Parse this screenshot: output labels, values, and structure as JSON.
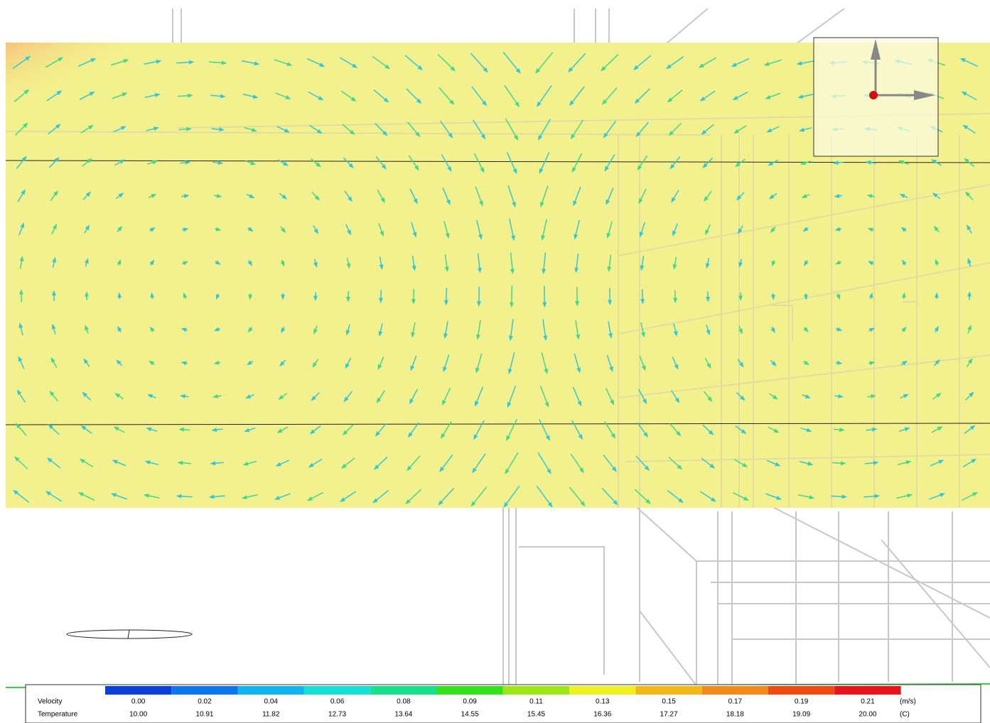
{
  "legend": {
    "rows": [
      {
        "label": "Velocity",
        "unit": "(m/s)",
        "values": [
          "0.00",
          "0.02",
          "0.04",
          "0.06",
          "0.08",
          "0.09",
          "0.11",
          "0.13",
          "0.15",
          "0.17",
          "0.19",
          "0.21"
        ]
      },
      {
        "label": "Temperature",
        "unit": "(C)",
        "values": [
          "10.00",
          "10.91",
          "11.82",
          "12.73",
          "13.64",
          "14.55",
          "15.45",
          "16.36",
          "17.27",
          "18.18",
          "19.09",
          "20.00"
        ]
      }
    ],
    "colors": [
      "#0a3fd8",
      "#0e76e6",
      "#10b4ea",
      "#14e0d8",
      "#16e08a",
      "#36e01c",
      "#9ce816",
      "#f0f020",
      "#f0b81a",
      "#f08a1a",
      "#f04a14",
      "#e8141a"
    ]
  }
}
